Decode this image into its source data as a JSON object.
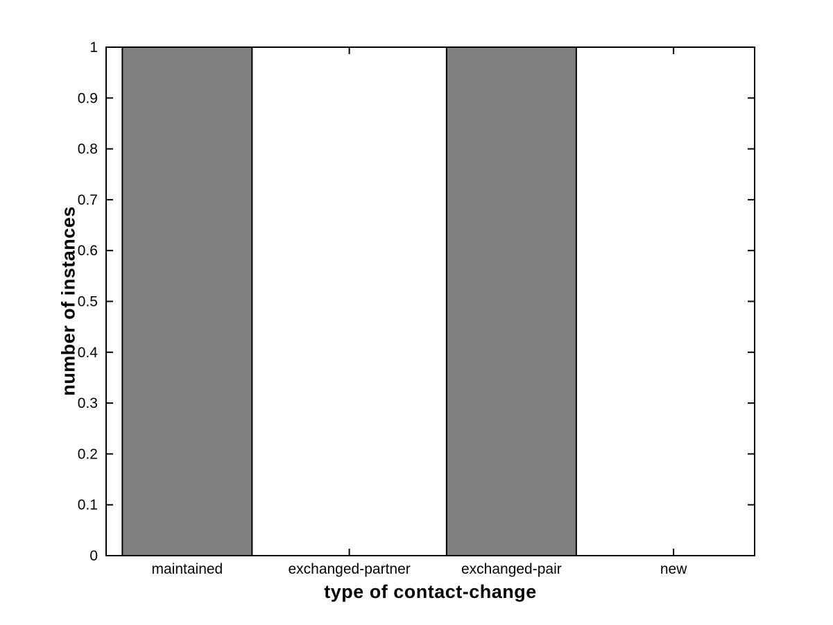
{
  "figure": {
    "background": "#ffffff"
  },
  "chart_data": {
    "type": "bar",
    "title": "",
    "categories": [
      "maintained",
      "exchanged-partner",
      "exchanged-pair",
      "new"
    ],
    "values": [
      1,
      0,
      1,
      0
    ],
    "xlabel": "type of contact-change",
    "ylabel": "number of instances",
    "ylim": [
      0,
      1
    ],
    "yticks": [
      0,
      0.1,
      0.2,
      0.3,
      0.4,
      0.5,
      0.6,
      0.7,
      0.8,
      0.9,
      1
    ],
    "ytick_labels": [
      "0",
      "0.1",
      "0.2",
      "0.3",
      "0.4",
      "0.5",
      "0.6",
      "0.7",
      "0.8",
      "0.9",
      "1"
    ],
    "bar_color": "#808080",
    "bar_edge_color": "#000000",
    "axis_color": "#000000",
    "text_color": "#000000",
    "bar_width_fraction": 0.8,
    "grid": false,
    "legend": null
  }
}
